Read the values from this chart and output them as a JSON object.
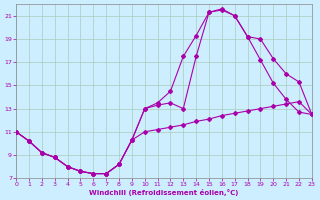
{
  "xlabel": "Windchill (Refroidissement éolien,°C)",
  "background_color": "#cceeff",
  "grid_color": "#aaccbb",
  "line_color": "#aa00aa",
  "xlim": [
    0,
    23
  ],
  "ylim": [
    7,
    22
  ],
  "xticks": [
    0,
    1,
    2,
    3,
    4,
    5,
    6,
    7,
    8,
    9,
    10,
    11,
    12,
    13,
    14,
    15,
    16,
    17,
    18,
    19,
    20,
    21,
    22,
    23
  ],
  "yticks": [
    7,
    9,
    11,
    13,
    15,
    17,
    19,
    21
  ],
  "curve1_x": [
    0,
    1,
    2,
    3,
    4,
    5,
    6,
    7,
    8,
    9,
    10,
    11,
    12,
    13,
    14,
    15,
    16,
    17,
    18,
    19,
    20,
    21,
    22,
    23
  ],
  "curve1_y": [
    11.0,
    10.2,
    9.2,
    8.8,
    8.0,
    7.6,
    7.4,
    7.4,
    8.2,
    10.3,
    11.0,
    11.2,
    11.4,
    11.6,
    11.9,
    12.1,
    12.4,
    12.6,
    12.8,
    13.0,
    13.2,
    13.4,
    13.6,
    12.5
  ],
  "curve2_x": [
    0,
    1,
    2,
    3,
    4,
    5,
    6,
    7,
    8,
    9,
    10,
    11,
    12,
    13,
    14,
    15,
    16,
    17,
    18,
    19,
    20,
    21,
    22,
    23
  ],
  "curve2_y": [
    11.0,
    10.2,
    9.2,
    8.8,
    8.0,
    7.6,
    7.4,
    7.4,
    8.2,
    10.3,
    13.0,
    13.3,
    13.5,
    13.0,
    17.5,
    21.3,
    21.6,
    21.0,
    19.2,
    17.2,
    15.2,
    13.8,
    12.7,
    12.5
  ],
  "curve3_x": [
    0,
    1,
    2,
    3,
    4,
    5,
    6,
    7,
    8,
    9,
    10,
    11,
    12,
    13,
    14,
    15,
    16,
    17,
    18,
    19,
    20,
    21,
    22,
    23
  ],
  "curve3_y": [
    11.0,
    10.2,
    9.2,
    8.8,
    8.0,
    7.6,
    7.4,
    7.4,
    8.2,
    10.3,
    13.0,
    13.5,
    14.5,
    17.5,
    19.3,
    21.3,
    21.5,
    21.0,
    19.2,
    19.0,
    17.3,
    16.0,
    15.3,
    12.5
  ]
}
